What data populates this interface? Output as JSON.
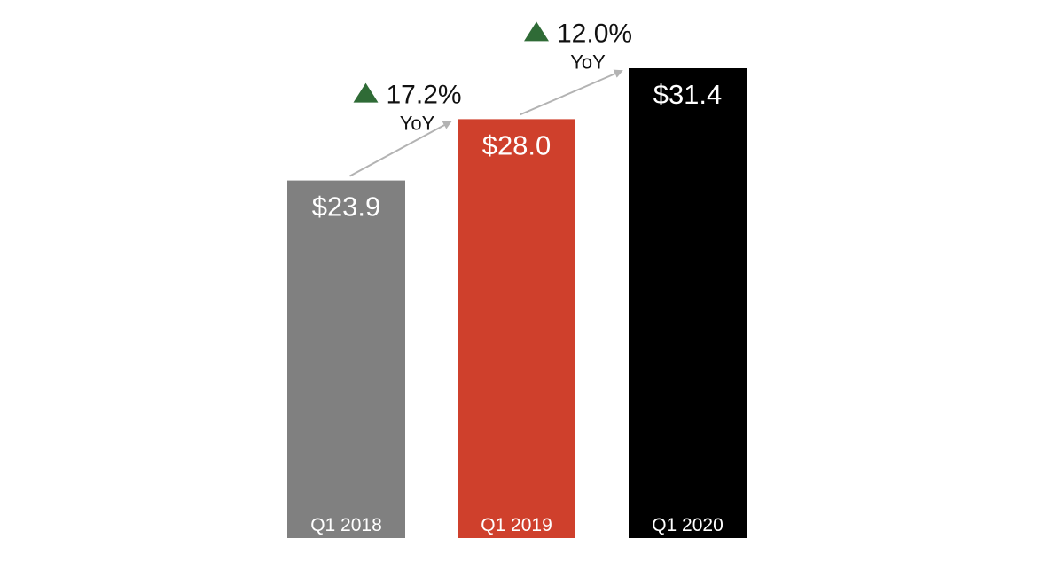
{
  "chart_data": {
    "type": "bar",
    "title": "",
    "xlabel": "",
    "ylabel": "",
    "ylim": [
      0,
      31.4
    ],
    "grid": false,
    "legend": "none",
    "categories": [
      "Q1 2018",
      "Q1 2019",
      "Q1 2020"
    ],
    "values": [
      23.9,
      28.0,
      31.4
    ],
    "value_labels": [
      "$23.9",
      "$28.0",
      "$31.4"
    ],
    "bar_colors": [
      "#808080",
      "#cf402c",
      "#000000"
    ],
    "annotations": [
      {
        "from": "Q1 2018",
        "to": "Q1 2019",
        "change": "17.2%",
        "label": "YoY",
        "direction": "up",
        "color": "#2f6b36"
      },
      {
        "from": "Q1 2019",
        "to": "Q1 2020",
        "change": "12.0%",
        "label": "YoY",
        "direction": "up",
        "color": "#2f6b36"
      }
    ],
    "arrow_color": "#b3b3b3"
  }
}
